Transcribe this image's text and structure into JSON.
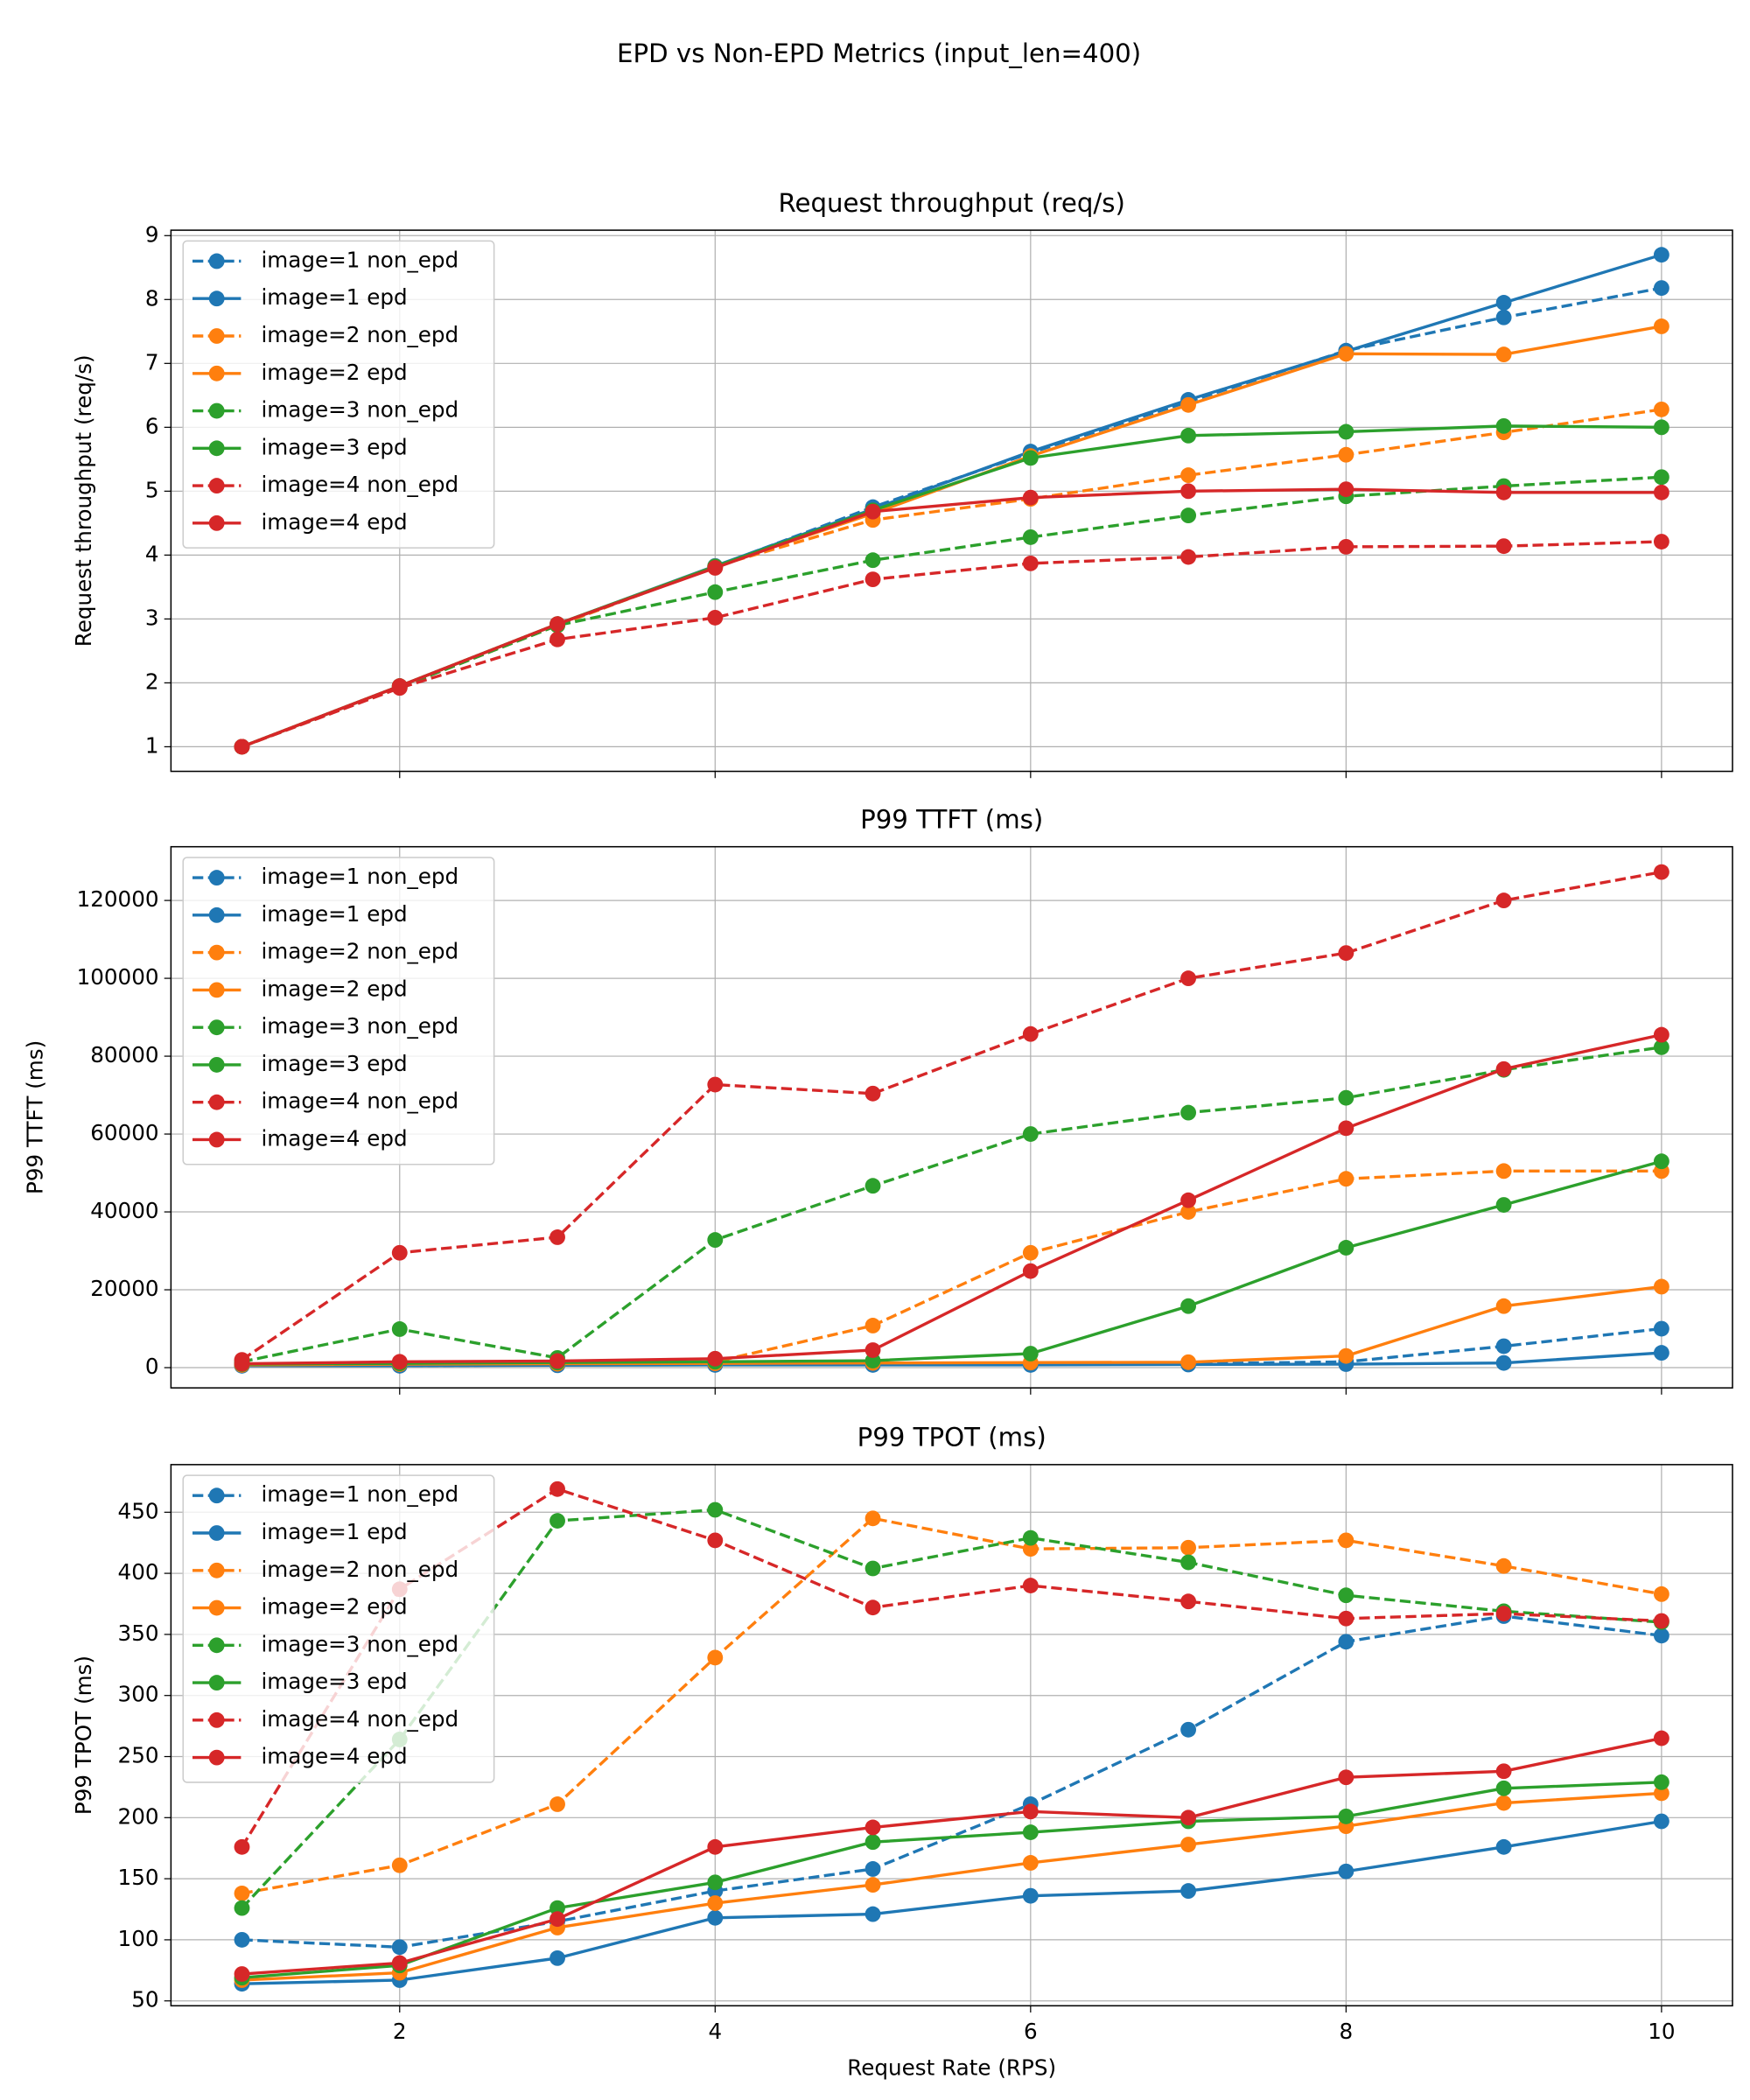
{
  "title": "EPD vs Non-EPD Metrics (input_len=400)",
  "chart_data": [
    {
      "type": "line",
      "title": "Request throughput (req/s)",
      "ylabel": "Request throughput (req/s)",
      "x": [
        1,
        2,
        3,
        4,
        5,
        6,
        7,
        8,
        9,
        10
      ],
      "xlim": [
        0.55,
        10.45
      ],
      "xticks": [
        2,
        4,
        6,
        8,
        10
      ],
      "ylim": [
        0.615,
        9.085
      ],
      "yticks": [
        1,
        2,
        3,
        4,
        5,
        6,
        7,
        8,
        9
      ],
      "grid": true,
      "legend": "upper-left",
      "series": [
        {
          "name": "image=1 non_epd",
          "color": "#1f77b4",
          "linestyle": "dashed",
          "values": [
            1,
            1.93,
            2.9,
            3.82,
            4.75,
            5.6,
            6.4,
            7.2,
            7.72,
            8.18
          ]
        },
        {
          "name": "image=1 epd",
          "color": "#1f77b4",
          "linestyle": "solid",
          "values": [
            1,
            1.95,
            2.92,
            3.83,
            4.72,
            5.62,
            6.43,
            7.19,
            7.95,
            8.7
          ]
        },
        {
          "name": "image=2 non_epd",
          "color": "#ff7f0e",
          "linestyle": "dashed",
          "values": [
            1,
            1.93,
            2.9,
            3.82,
            4.55,
            4.88,
            5.25,
            5.57,
            5.92,
            6.28
          ]
        },
        {
          "name": "image=2 epd",
          "color": "#ff7f0e",
          "linestyle": "solid",
          "values": [
            1,
            1.95,
            2.92,
            3.82,
            4.65,
            5.55,
            6.35,
            7.15,
            7.14,
            7.58
          ]
        },
        {
          "name": "image=3 non_epd",
          "color": "#2ca02c",
          "linestyle": "dashed",
          "values": [
            1,
            1.93,
            2.9,
            3.42,
            3.92,
            4.28,
            4.62,
            4.92,
            5.08,
            5.22
          ]
        },
        {
          "name": "image=3 epd",
          "color": "#2ca02c",
          "linestyle": "solid",
          "values": [
            1,
            1.95,
            2.92,
            3.82,
            4.7,
            5.52,
            5.87,
            5.93,
            6.02,
            6.0
          ]
        },
        {
          "name": "image=4 non_epd",
          "color": "#d62728",
          "linestyle": "dashed",
          "values": [
            1,
            1.92,
            2.68,
            3.02,
            3.62,
            3.87,
            3.97,
            4.13,
            4.14,
            4.21
          ]
        },
        {
          "name": "image=4 epd",
          "color": "#d62728",
          "linestyle": "solid",
          "values": [
            1,
            1.95,
            2.92,
            3.8,
            4.68,
            4.9,
            5.0,
            5.03,
            4.98,
            4.98
          ]
        }
      ]
    },
    {
      "type": "line",
      "title": "P99 TTFT (ms)",
      "ylabel": "P99 TTFT (ms)",
      "x": [
        1,
        2,
        3,
        4,
        5,
        6,
        7,
        8,
        9,
        10
      ],
      "xlim": [
        0.55,
        10.45
      ],
      "xticks": [
        2,
        4,
        6,
        8,
        10
      ],
      "ylim": [
        -5200,
        133800
      ],
      "yticks": [
        0,
        20000,
        40000,
        60000,
        80000,
        100000,
        120000
      ],
      "grid": true,
      "legend": "upper-left",
      "series": [
        {
          "name": "image=1 non_epd",
          "color": "#1f77b4",
          "linestyle": "dashed",
          "values": [
            500,
            500,
            700,
            800,
            900,
            900,
            1000,
            1500,
            5500,
            10000
          ]
        },
        {
          "name": "image=1 epd",
          "color": "#1f77b4",
          "linestyle": "solid",
          "values": [
            500,
            500,
            600,
            700,
            700,
            700,
            800,
            900,
            1200,
            3800
          ]
        },
        {
          "name": "image=2 non_epd",
          "color": "#ff7f0e",
          "linestyle": "dashed",
          "values": [
            800,
            1000,
            1200,
            1500,
            10800,
            29500,
            40000,
            48500,
            50500,
            50500
          ]
        },
        {
          "name": "image=2 epd",
          "color": "#ff7f0e",
          "linestyle": "solid",
          "values": [
            700,
            900,
            1000,
            1100,
            1200,
            1300,
            1400,
            3000,
            15800,
            20800
          ]
        },
        {
          "name": "image=3 non_epd",
          "color": "#2ca02c",
          "linestyle": "dashed",
          "values": [
            1500,
            9900,
            2500,
            32800,
            46700,
            60000,
            65500,
            69300,
            76500,
            82300
          ]
        },
        {
          "name": "image=3 epd",
          "color": "#2ca02c",
          "linestyle": "solid",
          "values": [
            900,
            1100,
            1300,
            1500,
            1800,
            3600,
            15800,
            30800,
            41800,
            53000
          ]
        },
        {
          "name": "image=4 non_epd",
          "color": "#d62728",
          "linestyle": "dashed",
          "values": [
            2000,
            29500,
            33500,
            72700,
            70400,
            85700,
            100000,
            106500,
            120000,
            127300
          ]
        },
        {
          "name": "image=4 epd",
          "color": "#d62728",
          "linestyle": "solid",
          "values": [
            1000,
            1500,
            1700,
            2300,
            4500,
            24800,
            43000,
            61500,
            76700,
            85500
          ]
        }
      ]
    },
    {
      "type": "line",
      "title": "P99 TPOT (ms)",
      "ylabel": "P99 TPOT (ms)",
      "xlabel": "Request Rate (RPS)",
      "x": [
        1,
        2,
        3,
        4,
        5,
        6,
        7,
        8,
        9,
        10
      ],
      "xlim": [
        0.55,
        10.45
      ],
      "xticks": [
        2,
        4,
        6,
        8,
        10
      ],
      "ylim": [
        46,
        489
      ],
      "yticks": [
        50,
        100,
        150,
        200,
        250,
        300,
        350,
        400,
        450
      ],
      "grid": true,
      "legend": "upper-left",
      "series": [
        {
          "name": "image=1 non_epd",
          "color": "#1f77b4",
          "linestyle": "dashed",
          "values": [
            100,
            94,
            115,
            140,
            158,
            211,
            272,
            344,
            365,
            349
          ]
        },
        {
          "name": "image=1 epd",
          "color": "#1f77b4",
          "linestyle": "solid",
          "values": [
            64,
            67,
            85,
            118,
            121,
            136,
            140,
            156,
            176,
            197
          ]
        },
        {
          "name": "image=2 non_epd",
          "color": "#ff7f0e",
          "linestyle": "dashed",
          "values": [
            138,
            161,
            211,
            331,
            445,
            420,
            421,
            427,
            406,
            383
          ]
        },
        {
          "name": "image=2 epd",
          "color": "#ff7f0e",
          "linestyle": "solid",
          "values": [
            67,
            73,
            110,
            130,
            145,
            163,
            178,
            193,
            212,
            220
          ]
        },
        {
          "name": "image=3 non_epd",
          "color": "#2ca02c",
          "linestyle": "dashed",
          "values": [
            126,
            264,
            443,
            452,
            404,
            429,
            409,
            382,
            369,
            360
          ]
        },
        {
          "name": "image=3 epd",
          "color": "#2ca02c",
          "linestyle": "solid",
          "values": [
            69,
            79,
            126,
            147,
            180,
            188,
            197,
            201,
            224,
            229
          ]
        },
        {
          "name": "image=4 non_epd",
          "color": "#d62728",
          "linestyle": "dashed",
          "values": [
            176,
            387,
            469,
            427,
            372,
            390,
            377,
            363,
            367,
            361
          ]
        },
        {
          "name": "image=4 epd",
          "color": "#d62728",
          "linestyle": "solid",
          "values": [
            72,
            81,
            117,
            176,
            192,
            205,
            200,
            233,
            238,
            265
          ]
        }
      ]
    }
  ]
}
